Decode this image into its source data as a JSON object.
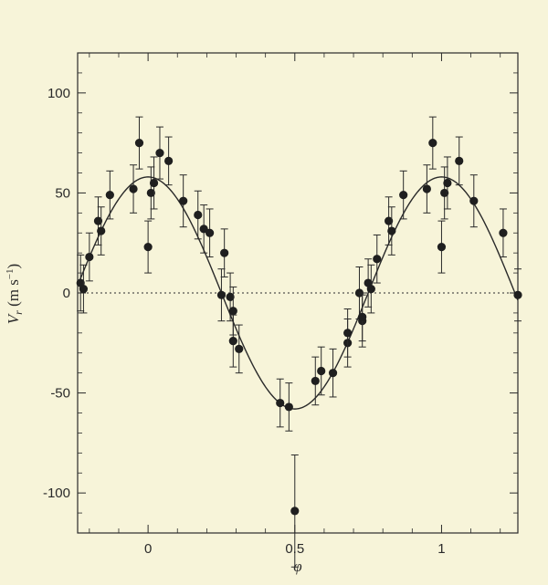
{
  "chart_data": {
    "type": "scatter",
    "xlabel": "φ",
    "ylabel": "V_r (m s^-1)",
    "ylabel_parts": {
      "main": "V",
      "sub": "r",
      "unit_open": " (m s",
      "unit_sup": "−1",
      "unit_close": ")"
    },
    "xlim": [
      -0.24,
      1.26
    ],
    "ylim": [
      -120,
      120
    ],
    "xticks": [
      0,
      0.5,
      1
    ],
    "xtick_labels": [
      "0",
      "0.5",
      "1"
    ],
    "yticks": [
      -100,
      -50,
      0,
      50,
      100
    ],
    "ytick_labels": [
      "-100",
      "-50",
      "0",
      "50",
      "100"
    ],
    "zero_line": "dotted",
    "grid": false,
    "fit_curve": {
      "type": "sinusoid",
      "amplitude": 58,
      "phase_of_max": 0.0,
      "period": 1
    },
    "series": [
      {
        "points": [
          {
            "x": -0.23,
            "y": 5,
            "err": 14
          },
          {
            "x": -0.22,
            "y": 2,
            "err": 12
          },
          {
            "x": -0.2,
            "y": 18,
            "err": 12
          },
          {
            "x": -0.17,
            "y": 36,
            "err": 12
          },
          {
            "x": -0.16,
            "y": 31,
            "err": 12
          },
          {
            "x": -0.13,
            "y": 49,
            "err": 12
          },
          {
            "x": -0.05,
            "y": 52,
            "err": 12
          },
          {
            "x": -0.03,
            "y": 75,
            "err": 13
          },
          {
            "x": 0.0,
            "y": 23,
            "err": 13
          },
          {
            "x": 0.01,
            "y": 50,
            "err": 13
          },
          {
            "x": 0.02,
            "y": 55,
            "err": 13
          },
          {
            "x": 0.04,
            "y": 70,
            "err": 13
          },
          {
            "x": 0.07,
            "y": 66,
            "err": 12
          },
          {
            "x": 0.12,
            "y": 46,
            "err": 13
          },
          {
            "x": 0.17,
            "y": 39,
            "err": 12
          },
          {
            "x": 0.19,
            "y": 32,
            "err": 12
          },
          {
            "x": 0.21,
            "y": 30,
            "err": 12
          },
          {
            "x": 0.25,
            "y": -1,
            "err": 13
          },
          {
            "x": 0.26,
            "y": 20,
            "err": 12
          },
          {
            "x": 0.28,
            "y": -2,
            "err": 12
          },
          {
            "x": 0.29,
            "y": -9,
            "err": 12
          },
          {
            "x": 0.29,
            "y": -24,
            "err": 13
          },
          {
            "x": 0.31,
            "y": -28,
            "err": 12
          },
          {
            "x": 0.45,
            "y": -55,
            "err": 12
          },
          {
            "x": 0.48,
            "y": -57,
            "err": 12
          },
          {
            "x": 0.5,
            "y": -109,
            "err": 28
          },
          {
            "x": 0.57,
            "y": -44,
            "err": 12
          },
          {
            "x": 0.59,
            "y": -39,
            "err": 12
          },
          {
            "x": 0.63,
            "y": -40,
            "err": 12
          },
          {
            "x": 0.68,
            "y": -25,
            "err": 12
          },
          {
            "x": 0.68,
            "y": -20,
            "err": 12
          },
          {
            "x": 0.72,
            "y": 0,
            "err": 13
          },
          {
            "x": 0.73,
            "y": -14,
            "err": 13
          },
          {
            "x": 0.73,
            "y": -12,
            "err": 12
          },
          {
            "x": 0.75,
            "y": 5,
            "err": 12
          },
          {
            "x": 0.76,
            "y": 2,
            "err": 12
          },
          {
            "x": 0.78,
            "y": 17,
            "err": 12
          },
          {
            "x": 0.82,
            "y": 36,
            "err": 12
          },
          {
            "x": 0.83,
            "y": 31,
            "err": 12
          },
          {
            "x": 0.87,
            "y": 49,
            "err": 12
          },
          {
            "x": 0.95,
            "y": 52,
            "err": 12
          },
          {
            "x": 0.97,
            "y": 75,
            "err": 13
          },
          {
            "x": 1.0,
            "y": 23,
            "err": 13
          },
          {
            "x": 1.01,
            "y": 50,
            "err": 13
          },
          {
            "x": 1.02,
            "y": 55,
            "err": 13
          },
          {
            "x": 1.06,
            "y": 66,
            "err": 12
          },
          {
            "x": 1.11,
            "y": 46,
            "err": 13
          },
          {
            "x": 1.21,
            "y": 30,
            "err": 12
          },
          {
            "x": 1.26,
            "y": -1,
            "err": 13
          }
        ]
      }
    ]
  },
  "colors": {
    "background": "#f7f4d9",
    "ink": "#2a2a2a",
    "marker": "#1f1f1f"
  }
}
